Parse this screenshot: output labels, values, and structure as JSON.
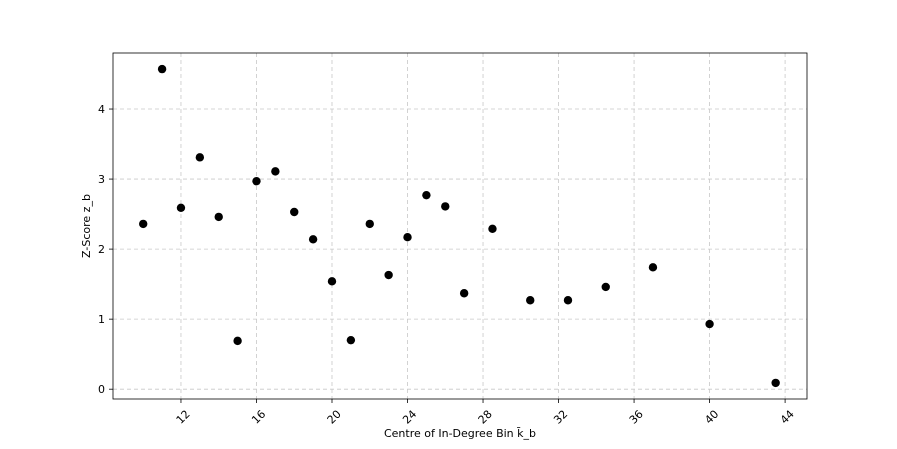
{
  "chart_data": {
    "type": "scatter",
    "xlabel": "Centre of In-Degree Bin k̄_b",
    "ylabel": "Z-Score z_b",
    "x": [
      10,
      11,
      12,
      13,
      14,
      15,
      16,
      17,
      18,
      19,
      20,
      21,
      22,
      23,
      24,
      25,
      26,
      27,
      28.5,
      30.5,
      32.5,
      34.5,
      37,
      40,
      43.5
    ],
    "series": [
      {
        "color": "#000000",
        "values": [
          2.36,
          4.57,
          2.59,
          3.31,
          2.46,
          0.69,
          2.97,
          3.11,
          2.53,
          2.14,
          1.54,
          0.7,
          2.36,
          1.63,
          2.17,
          2.77,
          2.61,
          1.37,
          2.29,
          1.27,
          1.27,
          1.46,
          1.74,
          0.93,
          0.09
        ]
      }
    ],
    "xlim": [
      8.4,
      45.16
    ],
    "ylim": [
      -0.14,
      4.8
    ],
    "xticks": [
      12,
      16,
      20,
      24,
      28,
      32,
      36,
      40,
      44
    ],
    "yticks": [
      0,
      1,
      2,
      3,
      4
    ],
    "grid": true
  }
}
